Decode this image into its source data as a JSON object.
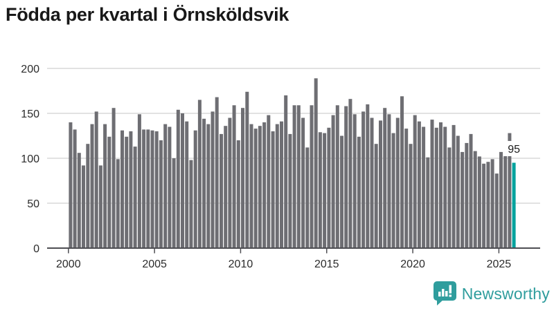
{
  "chart_data": {
    "type": "bar",
    "title": "Födda per kvartal i Örnsköldsvik",
    "x_tick_labels": [
      "2000",
      "2005",
      "2010",
      "2015",
      "2020",
      "2025"
    ],
    "y_tick_labels": [
      "0",
      "50",
      "100",
      "150",
      "200"
    ],
    "ylim": [
      0,
      200
    ],
    "grid": "horizontal",
    "legend": "none",
    "bar_color": "#6e6e73",
    "highlight_color": "#00a29d",
    "grid_color": "#e2e2e2",
    "axis_color": "#4d4d52",
    "highlight_label": "95",
    "quarters": [
      {
        "year": 2000,
        "values": [
          140,
          132,
          106,
          92
        ]
      },
      {
        "year": 2001,
        "values": [
          116,
          138,
          152,
          92
        ]
      },
      {
        "year": 2002,
        "values": [
          138,
          124,
          156,
          99
        ]
      },
      {
        "year": 2003,
        "values": [
          131,
          124,
          130,
          113
        ]
      },
      {
        "year": 2004,
        "values": [
          149,
          132,
          132,
          131
        ]
      },
      {
        "year": 2005,
        "values": [
          130,
          120,
          138,
          135
        ]
      },
      {
        "year": 2006,
        "values": [
          100,
          154,
          150,
          141
        ]
      },
      {
        "year": 2007,
        "values": [
          98,
          131,
          165,
          144
        ]
      },
      {
        "year": 2008,
        "values": [
          138,
          152,
          168,
          127
        ]
      },
      {
        "year": 2009,
        "values": [
          136,
          145,
          159,
          120
        ]
      },
      {
        "year": 2010,
        "values": [
          156,
          174,
          138,
          133
        ]
      },
      {
        "year": 2011,
        "values": [
          136,
          140,
          148,
          130
        ]
      },
      {
        "year": 2012,
        "values": [
          138,
          141,
          170,
          127
        ]
      },
      {
        "year": 2013,
        "values": [
          159,
          159,
          145,
          112
        ]
      },
      {
        "year": 2014,
        "values": [
          159,
          189,
          129,
          128
        ]
      },
      {
        "year": 2015,
        "values": [
          134,
          148,
          159,
          125
        ]
      },
      {
        "year": 2016,
        "values": [
          158,
          166,
          149,
          124
        ]
      },
      {
        "year": 2017,
        "values": [
          152,
          160,
          145,
          116
        ]
      },
      {
        "year": 2018,
        "values": [
          142,
          156,
          149,
          128
        ]
      },
      {
        "year": 2019,
        "values": [
          145,
          169,
          133,
          116
        ]
      },
      {
        "year": 2020,
        "values": [
          148,
          141,
          135,
          101
        ]
      },
      {
        "year": 2021,
        "values": [
          143,
          134,
          140,
          135
        ]
      },
      {
        "year": 2022,
        "values": [
          112,
          137,
          125,
          107
        ]
      },
      {
        "year": 2023,
        "values": [
          117,
          127,
          108,
          102
        ]
      },
      {
        "year": 2024,
        "values": [
          94,
          96,
          99,
          83
        ]
      },
      {
        "year": 2025,
        "values": [
          107,
          108,
          128,
          95
        ]
      }
    ]
  },
  "footer": {
    "brand": "Newsworthy",
    "logo_icon": "newsworthy-speech-bubble-bar-chart-icon"
  }
}
